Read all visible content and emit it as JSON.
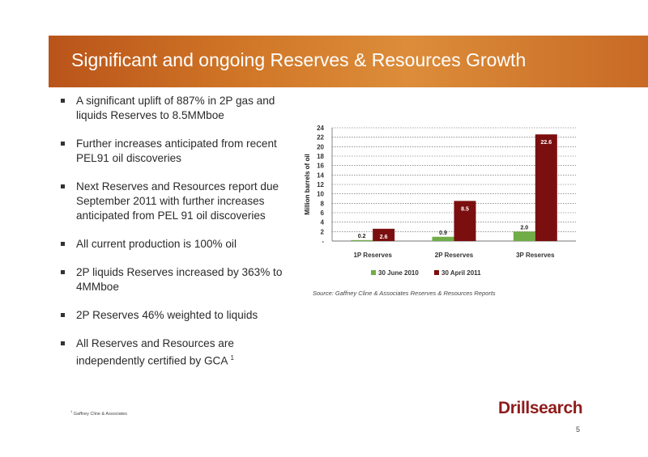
{
  "slide": {
    "title": "Significant and ongoing Reserves & Resources Growth",
    "page_number": "5",
    "logo_text": "Drillsearch"
  },
  "bullets": [
    "A significant uplift of 887% in 2P gas and liquids Reserves to 8.5MMboe",
    "Further increases anticipated from recent PEL91 oil discoveries",
    "Next Reserves and Resources report due September 2011 with further increases anticipated from PEL 91 oil discoveries",
    "All current production is 100% oil",
    "2P liquids Reserves increased by 363% to 4MMboe",
    "2P Reserves 46% weighted to liquids",
    "All Reserves and Resources are independently certified by GCA"
  ],
  "last_bullet_marker": "1",
  "source_text": "Source: Gaffney Cline & Associates Reserves & Resources Reports",
  "footnote": {
    "marker": "1",
    "text": "Gaffney Cline & Associates"
  },
  "chart_data": {
    "type": "bar",
    "categories": [
      "1P Reserves",
      "2P Reserves",
      "3P Reserves"
    ],
    "series": [
      {
        "name": "30 June 2010",
        "values": [
          0.2,
          0.9,
          2.0
        ],
        "labels": [
          "0.2",
          "0.9",
          "2.0"
        ],
        "color": "#70ad47"
      },
      {
        "name": "30 April 2011",
        "values": [
          2.6,
          8.5,
          22.6
        ],
        "labels": [
          "2.6",
          "8.5",
          "22.6"
        ],
        "color": "#7b0f0f"
      }
    ],
    "ylabel": "Million barrels of oil",
    "ylim": [
      0,
      24
    ],
    "yticks": [
      0,
      2,
      4,
      6,
      8,
      10,
      12,
      14,
      16,
      18,
      20,
      22,
      24
    ],
    "ytick_labels": [
      "-",
      "2",
      "4",
      "6",
      "8",
      "10",
      "12",
      "14",
      "16",
      "18",
      "20",
      "22",
      "24"
    ],
    "grid": true,
    "legend": "bottom"
  }
}
